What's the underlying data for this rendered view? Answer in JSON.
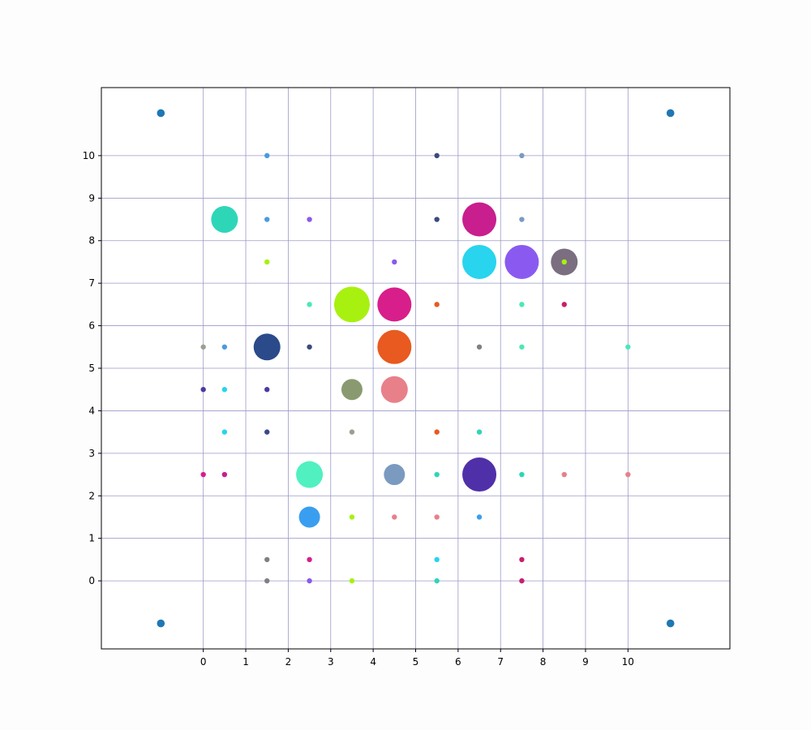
{
  "chart_data": {
    "type": "scatter",
    "title": "",
    "xlabel": "",
    "ylabel": "",
    "xlim": [
      -2.4,
      12.4
    ],
    "ylim": [
      -1.6,
      11.6
    ],
    "x_ticks": [
      0,
      1,
      2,
      3,
      4,
      5,
      6,
      7,
      8,
      9,
      10
    ],
    "y_ticks": [
      0,
      1,
      2,
      3,
      4,
      5,
      6,
      7,
      8,
      9,
      10
    ],
    "grid": true,
    "grid_color": "#9a9ac8",
    "corner_marker_color": "#1f77b4",
    "corner_points": [
      {
        "x": -1,
        "y": 11
      },
      {
        "x": 11,
        "y": 11
      },
      {
        "x": -1,
        "y": -1
      },
      {
        "x": 11,
        "y": -1
      }
    ],
    "points": [
      {
        "x": 1.5,
        "y": 10,
        "size": "s",
        "color": "#4a9be0"
      },
      {
        "x": 5.5,
        "y": 10,
        "size": "s",
        "color": "#3a4a7a"
      },
      {
        "x": 7.5,
        "y": 10,
        "size": "s",
        "color": "#7a9ac0"
      },
      {
        "x": 0.5,
        "y": 8.5,
        "size": "l",
        "color": "#2ed6b8"
      },
      {
        "x": 1.5,
        "y": 8.5,
        "size": "s",
        "color": "#4a9be0"
      },
      {
        "x": 2.5,
        "y": 8.5,
        "size": "s",
        "color": "#8a5ae8"
      },
      {
        "x": 5.5,
        "y": 8.5,
        "size": "s",
        "color": "#3a4a7a"
      },
      {
        "x": 6.5,
        "y": 8.5,
        "size": "xl",
        "color": "#c81e8e"
      },
      {
        "x": 7.5,
        "y": 8.5,
        "size": "s",
        "color": "#7a9ac0"
      },
      {
        "x": 1.5,
        "y": 7.5,
        "size": "s",
        "color": "#a8f010"
      },
      {
        "x": 4.5,
        "y": 7.5,
        "size": "s",
        "color": "#8a5ae8"
      },
      {
        "x": 6.5,
        "y": 7.5,
        "size": "xl",
        "color": "#28d4ee"
      },
      {
        "x": 7.5,
        "y": 7.5,
        "size": "xl",
        "color": "#8a5af0"
      },
      {
        "x": 8.5,
        "y": 7.5,
        "size": "l",
        "color": "#7a6e80"
      },
      {
        "x": 8.5,
        "y": 7.5,
        "size": "s",
        "color": "#a8f010"
      },
      {
        "x": 2.5,
        "y": 6.5,
        "size": "s",
        "color": "#4ae8b8"
      },
      {
        "x": 3.5,
        "y": 6.5,
        "size": "xxl",
        "color": "#a8f010"
      },
      {
        "x": 4.5,
        "y": 6.5,
        "size": "xl",
        "color": "#d81e8a"
      },
      {
        "x": 5.5,
        "y": 6.5,
        "size": "s",
        "color": "#e85a20"
      },
      {
        "x": 7.5,
        "y": 6.5,
        "size": "s",
        "color": "#4ae8b8"
      },
      {
        "x": 8.5,
        "y": 6.5,
        "size": "s",
        "color": "#c81e70"
      },
      {
        "x": 0,
        "y": 5.5,
        "size": "s",
        "color": "#9aa090"
      },
      {
        "x": 0.5,
        "y": 5.5,
        "size": "s",
        "color": "#4a9be0"
      },
      {
        "x": 1.5,
        "y": 5.5,
        "size": "l",
        "color": "#2a4a8a"
      },
      {
        "x": 2.5,
        "y": 5.5,
        "size": "s",
        "color": "#3a4a7a"
      },
      {
        "x": 4.5,
        "y": 5.5,
        "size": "xl",
        "color": "#e85a20"
      },
      {
        "x": 6.5,
        "y": 5.5,
        "size": "s",
        "color": "#808080"
      },
      {
        "x": 7.5,
        "y": 5.5,
        "size": "s",
        "color": "#4ae8b8"
      },
      {
        "x": 10,
        "y": 5.5,
        "size": "s",
        "color": "#4ae8b8"
      },
      {
        "x": 0,
        "y": 4.5,
        "size": "s",
        "color": "#4a3aa0"
      },
      {
        "x": 0.5,
        "y": 4.5,
        "size": "s",
        "color": "#28d4ee"
      },
      {
        "x": 1.5,
        "y": 4.5,
        "size": "s",
        "color": "#4a3aa0"
      },
      {
        "x": 3.5,
        "y": 4.5,
        "size": "m",
        "color": "#8a9a70"
      },
      {
        "x": 4.5,
        "y": 4.5,
        "size": "l",
        "color": "#e8808a"
      },
      {
        "x": 0.5,
        "y": 3.5,
        "size": "s",
        "color": "#28d4ee"
      },
      {
        "x": 1.5,
        "y": 3.5,
        "size": "s",
        "color": "#3a4a8a"
      },
      {
        "x": 3.5,
        "y": 3.5,
        "size": "s",
        "color": "#9aa090"
      },
      {
        "x": 5.5,
        "y": 3.5,
        "size": "s",
        "color": "#e85a20"
      },
      {
        "x": 6.5,
        "y": 3.5,
        "size": "s",
        "color": "#2ed6b8"
      },
      {
        "x": 0,
        "y": 2.5,
        "size": "s",
        "color": "#d81e8a"
      },
      {
        "x": 0.5,
        "y": 2.5,
        "size": "s",
        "color": "#c81e8e"
      },
      {
        "x": 2.5,
        "y": 2.5,
        "size": "l",
        "color": "#50f0c0"
      },
      {
        "x": 4.5,
        "y": 2.5,
        "size": "m",
        "color": "#7a9ac0"
      },
      {
        "x": 5.5,
        "y": 2.5,
        "size": "s",
        "color": "#2ed6b8"
      },
      {
        "x": 6.5,
        "y": 2.5,
        "size": "xl",
        "color": "#5030a8"
      },
      {
        "x": 7.5,
        "y": 2.5,
        "size": "s",
        "color": "#2ed6b8"
      },
      {
        "x": 8.5,
        "y": 2.5,
        "size": "s",
        "color": "#e8808a"
      },
      {
        "x": 10,
        "y": 2.5,
        "size": "s",
        "color": "#e8808a"
      },
      {
        "x": 2.5,
        "y": 1.5,
        "size": "m",
        "color": "#3a9ef0"
      },
      {
        "x": 3.5,
        "y": 1.5,
        "size": "s",
        "color": "#a8f010"
      },
      {
        "x": 4.5,
        "y": 1.5,
        "size": "s",
        "color": "#e8808a"
      },
      {
        "x": 5.5,
        "y": 1.5,
        "size": "s",
        "color": "#e8808a"
      },
      {
        "x": 6.5,
        "y": 1.5,
        "size": "s",
        "color": "#3a9ef0"
      },
      {
        "x": 1.5,
        "y": 0.5,
        "size": "s",
        "color": "#808080"
      },
      {
        "x": 2.5,
        "y": 0.5,
        "size": "s",
        "color": "#d81e8a"
      },
      {
        "x": 5.5,
        "y": 0.5,
        "size": "s",
        "color": "#28d4ee"
      },
      {
        "x": 7.5,
        "y": 0.5,
        "size": "s",
        "color": "#c81e70"
      },
      {
        "x": 1.5,
        "y": 0,
        "size": "s",
        "color": "#808080"
      },
      {
        "x": 2.5,
        "y": 0,
        "size": "s",
        "color": "#8a5ae8"
      },
      {
        "x": 3.5,
        "y": 0,
        "size": "s",
        "color": "#a8f010"
      },
      {
        "x": 5.5,
        "y": 0,
        "size": "s",
        "color": "#2ed6b8"
      },
      {
        "x": 7.5,
        "y": 0,
        "size": "s",
        "color": "#c81e70"
      }
    ]
  }
}
